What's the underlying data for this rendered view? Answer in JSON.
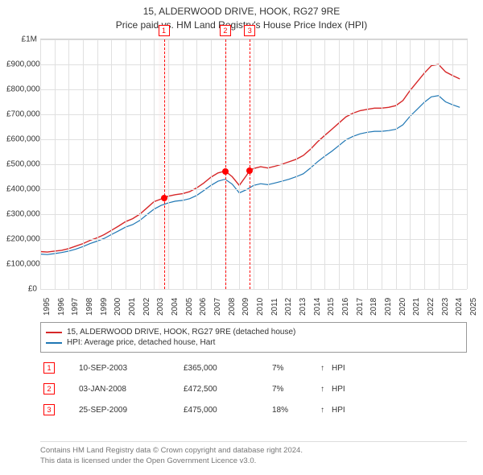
{
  "title_line1": "15, ALDERWOOD DRIVE, HOOK, RG27 9RE",
  "title_line2": "Price paid vs. HM Land Registry's House Price Index (HPI)",
  "chart": {
    "type": "line",
    "background_color": "#ffffff",
    "grid_color": "#e0e0e0",
    "border_color": "#cccccc",
    "y": {
      "min": 0,
      "max": 1000000,
      "step": 100000,
      "labels": [
        "£0",
        "£100,000",
        "£200,000",
        "£300,000",
        "£400,000",
        "£500,000",
        "£600,000",
        "£700,000",
        "£800,000",
        "£900,000",
        "£1M"
      ],
      "fontsize": 10
    },
    "x": {
      "min": 1995,
      "max": 2025,
      "step": 1,
      "labels": [
        "1995",
        "1996",
        "1997",
        "1998",
        "1999",
        "2000",
        "2001",
        "2002",
        "2003",
        "2004",
        "2005",
        "2006",
        "2007",
        "2008",
        "2009",
        "2010",
        "2011",
        "2012",
        "2013",
        "2014",
        "2015",
        "2016",
        "2017",
        "2018",
        "2019",
        "2020",
        "2021",
        "2022",
        "2023",
        "2024",
        "2025"
      ],
      "fontsize": 10
    },
    "series": [
      {
        "name": "15, ALDERWOOD DRIVE, HOOK, RG27 9RE (detached house)",
        "color": "#d62728",
        "width": 1.4,
        "data": [
          [
            1995.0,
            150000
          ],
          [
            1995.5,
            148000
          ],
          [
            1996.0,
            152000
          ],
          [
            1996.5,
            155000
          ],
          [
            1997.0,
            162000
          ],
          [
            1997.5,
            172000
          ],
          [
            1998.0,
            182000
          ],
          [
            1998.5,
            195000
          ],
          [
            1999.0,
            205000
          ],
          [
            1999.5,
            218000
          ],
          [
            2000.0,
            235000
          ],
          [
            2000.5,
            252000
          ],
          [
            2001.0,
            270000
          ],
          [
            2001.5,
            282000
          ],
          [
            2002.0,
            300000
          ],
          [
            2002.5,
            325000
          ],
          [
            2003.0,
            350000
          ],
          [
            2003.7,
            365000
          ],
          [
            2004.0,
            372000
          ],
          [
            2004.5,
            378000
          ],
          [
            2005.0,
            382000
          ],
          [
            2005.5,
            390000
          ],
          [
            2006.0,
            405000
          ],
          [
            2006.5,
            425000
          ],
          [
            2007.0,
            448000
          ],
          [
            2007.5,
            465000
          ],
          [
            2008.0,
            472500
          ],
          [
            2008.5,
            450000
          ],
          [
            2009.0,
            415000
          ],
          [
            2009.5,
            455000
          ],
          [
            2009.73,
            475000
          ],
          [
            2010.0,
            483000
          ],
          [
            2010.5,
            490000
          ],
          [
            2011.0,
            485000
          ],
          [
            2011.5,
            492000
          ],
          [
            2012.0,
            500000
          ],
          [
            2012.5,
            510000
          ],
          [
            2013.0,
            520000
          ],
          [
            2013.5,
            535000
          ],
          [
            2014.0,
            560000
          ],
          [
            2014.5,
            590000
          ],
          [
            2015.0,
            615000
          ],
          [
            2015.5,
            640000
          ],
          [
            2016.0,
            665000
          ],
          [
            2016.5,
            690000
          ],
          [
            2017.0,
            705000
          ],
          [
            2017.5,
            715000
          ],
          [
            2018.0,
            720000
          ],
          [
            2018.5,
            725000
          ],
          [
            2019.0,
            725000
          ],
          [
            2019.5,
            728000
          ],
          [
            2020.0,
            735000
          ],
          [
            2020.5,
            755000
          ],
          [
            2021.0,
            795000
          ],
          [
            2021.5,
            830000
          ],
          [
            2022.0,
            865000
          ],
          [
            2022.5,
            895000
          ],
          [
            2023.0,
            900000
          ],
          [
            2023.5,
            870000
          ],
          [
            2024.0,
            855000
          ],
          [
            2024.5,
            842000
          ]
        ]
      },
      {
        "name": "HPI: Average price, detached house, Hart",
        "color": "#1f77b4",
        "width": 1.2,
        "data": [
          [
            1995.0,
            140000
          ],
          [
            1995.5,
            138000
          ],
          [
            1996.0,
            142000
          ],
          [
            1996.5,
            146000
          ],
          [
            1997.0,
            152000
          ],
          [
            1997.5,
            160000
          ],
          [
            1998.0,
            170000
          ],
          [
            1998.5,
            182000
          ],
          [
            1999.0,
            192000
          ],
          [
            1999.5,
            203000
          ],
          [
            2000.0,
            218000
          ],
          [
            2000.5,
            233000
          ],
          [
            2001.0,
            248000
          ],
          [
            2001.5,
            258000
          ],
          [
            2002.0,
            275000
          ],
          [
            2002.5,
            298000
          ],
          [
            2003.0,
            320000
          ],
          [
            2003.5,
            335000
          ],
          [
            2004.0,
            345000
          ],
          [
            2004.5,
            352000
          ],
          [
            2005.0,
            355000
          ],
          [
            2005.5,
            362000
          ],
          [
            2006.0,
            375000
          ],
          [
            2006.5,
            395000
          ],
          [
            2007.0,
            415000
          ],
          [
            2007.5,
            432000
          ],
          [
            2008.0,
            440000
          ],
          [
            2008.5,
            420000
          ],
          [
            2009.0,
            385000
          ],
          [
            2009.5,
            398000
          ],
          [
            2010.0,
            415000
          ],
          [
            2010.5,
            422000
          ],
          [
            2011.0,
            418000
          ],
          [
            2011.5,
            425000
          ],
          [
            2012.0,
            432000
          ],
          [
            2012.5,
            440000
          ],
          [
            2013.0,
            450000
          ],
          [
            2013.5,
            462000
          ],
          [
            2014.0,
            485000
          ],
          [
            2014.5,
            510000
          ],
          [
            2015.0,
            532000
          ],
          [
            2015.5,
            552000
          ],
          [
            2016.0,
            575000
          ],
          [
            2016.5,
            598000
          ],
          [
            2017.0,
            612000
          ],
          [
            2017.5,
            622000
          ],
          [
            2018.0,
            628000
          ],
          [
            2018.5,
            632000
          ],
          [
            2019.0,
            632000
          ],
          [
            2019.5,
            635000
          ],
          [
            2020.0,
            640000
          ],
          [
            2020.5,
            658000
          ],
          [
            2021.0,
            692000
          ],
          [
            2021.5,
            720000
          ],
          [
            2022.0,
            748000
          ],
          [
            2022.5,
            770000
          ],
          [
            2023.0,
            775000
          ],
          [
            2023.5,
            750000
          ],
          [
            2024.0,
            738000
          ],
          [
            2024.5,
            728000
          ]
        ]
      }
    ],
    "markers": [
      {
        "num": "1",
        "year": 2003.69,
        "price": 365000
      },
      {
        "num": "2",
        "year": 2008.01,
        "price": 472500
      },
      {
        "num": "3",
        "year": 2009.73,
        "price": 475000
      }
    ],
    "marker_color": "#ff0000",
    "marker_bg_shade": "#fef0f0"
  },
  "legend": {
    "items": [
      {
        "label": "15, ALDERWOOD DRIVE, HOOK, RG27 9RE (detached house)",
        "color": "#d62728"
      },
      {
        "label": "HPI: Average price, detached house, Hart",
        "color": "#1f77b4"
      }
    ]
  },
  "sales": [
    {
      "num": "1",
      "date": "10-SEP-2003",
      "price": "£365,000",
      "pct": "7%",
      "arrow": "↑",
      "hpi": "HPI"
    },
    {
      "num": "2",
      "date": "03-JAN-2008",
      "price": "£472,500",
      "pct": "7%",
      "arrow": "↑",
      "hpi": "HPI"
    },
    {
      "num": "3",
      "date": "25-SEP-2009",
      "price": "£475,000",
      "pct": "18%",
      "arrow": "↑",
      "hpi": "HPI"
    }
  ],
  "footer_line1": "Contains HM Land Registry data © Crown copyright and database right 2024.",
  "footer_line2": "This data is licensed under the Open Government Licence v3.0."
}
